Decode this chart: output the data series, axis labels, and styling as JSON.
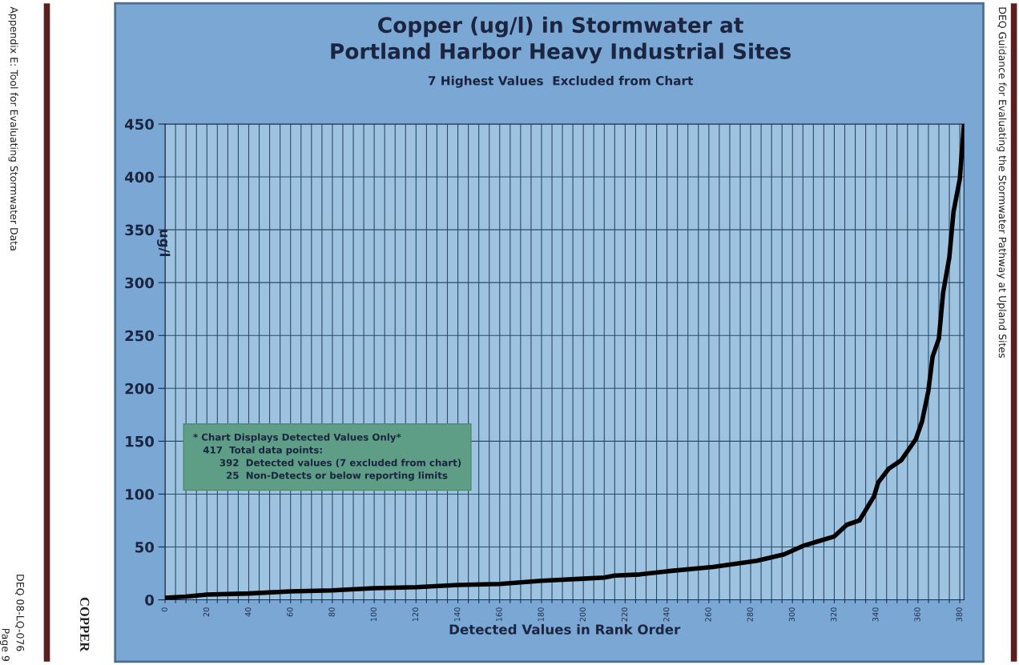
{
  "chart_data": {
    "type": "line",
    "title": "Copper (ug/l) in Stormwater at\nPortland Harbor Heavy Industrial Sites",
    "subtitle": "7 Highest Values  Excluded from Chart",
    "xlabel": "Detected Values in Rank Order",
    "ylabel": "ug/l",
    "x": [
      0,
      10,
      20,
      40,
      60,
      80,
      100,
      120,
      140,
      160,
      180,
      200,
      210,
      215,
      227,
      240,
      262,
      283,
      296,
      305,
      320,
      326,
      332,
      339,
      341,
      346,
      352,
      359,
      362,
      365,
      367,
      370,
      372,
      375,
      377,
      380,
      382
    ],
    "series": [
      {
        "color": "#000000",
        "values": [
          2,
          3,
          5,
          6,
          8,
          9,
          11,
          12,
          14,
          15,
          18,
          20,
          21,
          23,
          24,
          27,
          31,
          37,
          43,
          51,
          60,
          71,
          75,
          98,
          111,
          124,
          132,
          152,
          169,
          198,
          230,
          247,
          290,
          324,
          367,
          398,
          450
        ]
      }
    ],
    "xlim": [
      0,
      382
    ],
    "xticks": [
      0,
      {
        "value": 5,
        "label": null
      },
      {
        "value": 10,
        "label": null
      },
      {
        "value": 15,
        "label": null
      },
      20,
      {
        "value": 25,
        "label": null
      },
      {
        "value": 30,
        "label": null
      },
      {
        "value": 35,
        "label": null
      },
      40,
      {
        "value": 45,
        "label": null
      },
      {
        "value": 50,
        "label": null
      },
      {
        "value": 55,
        "label": null
      },
      60,
      {
        "value": 65,
        "label": null
      },
      {
        "value": 70,
        "label": null
      },
      {
        "value": 75,
        "label": null
      },
      80,
      {
        "value": 85,
        "label": null
      },
      {
        "value": 90,
        "label": null
      },
      {
        "value": 95,
        "label": null
      },
      100,
      {
        "value": 105,
        "label": null
      },
      {
        "value": 110,
        "label": null
      },
      {
        "value": 115,
        "label": null
      },
      120,
      {
        "value": 125,
        "label": null
      },
      {
        "value": 130,
        "label": null
      },
      {
        "value": 135,
        "label": null
      },
      140,
      {
        "value": 145,
        "label": null
      },
      {
        "value": 150,
        "label": null
      },
      {
        "value": 155,
        "label": null
      },
      160,
      {
        "value": 165,
        "label": null
      },
      {
        "value": 170,
        "label": null
      },
      {
        "value": 175,
        "label": null
      },
      180,
      {
        "value": 185,
        "label": null
      },
      {
        "value": 190,
        "label": null
      },
      {
        "value": 195,
        "label": null
      },
      200,
      {
        "value": 205,
        "label": null
      },
      {
        "value": 210,
        "label": null
      },
      {
        "value": 215,
        "label": null
      },
      220,
      {
        "value": 225,
        "label": null
      },
      {
        "value": 230,
        "label": null
      },
      {
        "value": 235,
        "label": null
      },
      240,
      {
        "value": 245,
        "label": null
      },
      {
        "value": 250,
        "label": null
      },
      {
        "value": 255,
        "label": null
      },
      260,
      {
        "value": 265,
        "label": null
      },
      {
        "value": 270,
        "label": null
      },
      {
        "value": 275,
        "label": null
      },
      280,
      {
        "value": 285,
        "label": null
      },
      {
        "value": 290,
        "label": null
      },
      {
        "value": 295,
        "label": null
      },
      300,
      {
        "value": 305,
        "label": null
      },
      {
        "value": 310,
        "label": null
      },
      {
        "value": 315,
        "label": null
      },
      320,
      {
        "value": 325,
        "label": null
      },
      {
        "value": 330,
        "label": null
      },
      {
        "value": 335,
        "label": null
      },
      340,
      {
        "value": 345,
        "label": null
      },
      {
        "value": 350,
        "label": null
      },
      {
        "value": 355,
        "label": null
      },
      360,
      {
        "value": 365,
        "label": null
      },
      {
        "value": 370,
        "label": null
      },
      {
        "value": 375,
        "label": null
      },
      380
    ],
    "ylim": [
      0,
      450
    ],
    "yticks": [
      0,
      50,
      100,
      150,
      200,
      250,
      300,
      350,
      400,
      450
    ],
    "grid": true,
    "marker": "none",
    "line_style": "solid",
    "legend": false,
    "annotations": [
      "* Chart Displays Detected Values Only*\n   417  Total data points:\n        392  Detected values (7 excluded from chart)\n          25  Non-Detects or below reporting limits",
      "Appendix E: Tool for Evaluating Stormwater Data",
      "DEQ Guidance for Evaluating the Stormwater Pathway at Upland Sites",
      "DEQ 08-LQ-076",
      "Page 9",
      "COPPER"
    ]
  }
}
